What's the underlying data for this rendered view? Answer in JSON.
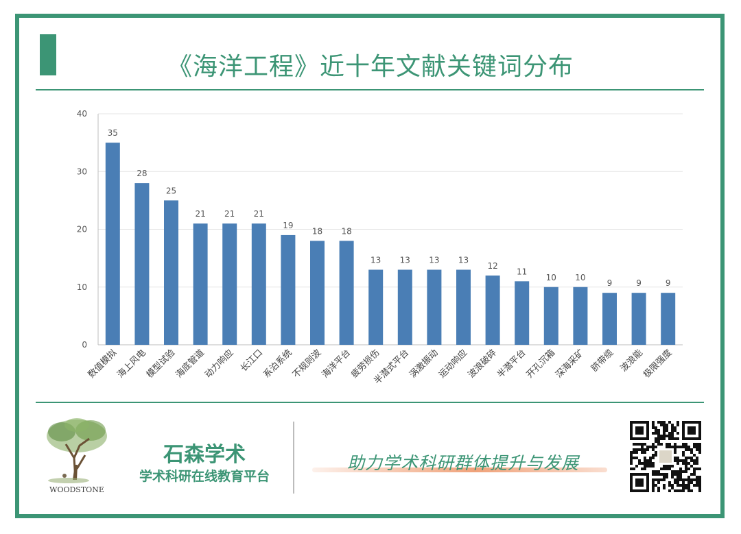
{
  "title": "《海洋工程》近十年文献关键词分布",
  "chart_data": {
    "type": "bar",
    "categories": [
      "数值模拟",
      "海上风电",
      "模型试验",
      "海底管道",
      "动力响应",
      "长江口",
      "系泊系统",
      "不规则波",
      "海洋平台",
      "疲劳损伤",
      "半潜式平台",
      "涡激振动",
      "运动响应",
      "波浪破碎",
      "半潜平台",
      "开孔沉箱",
      "深海采矿",
      "脐带缆",
      "波浪能",
      "极限强度"
    ],
    "values": [
      35,
      28,
      25,
      21,
      21,
      21,
      19,
      18,
      18,
      13,
      13,
      13,
      13,
      12,
      11,
      10,
      10,
      9,
      9,
      9
    ],
    "ylim": [
      0,
      40
    ],
    "yticks": [
      0,
      10,
      20,
      30,
      40
    ],
    "grid": true,
    "bar_color": "#4a7eb5"
  },
  "footer": {
    "logo_text": "WOODSTONE",
    "brand_name": "石森学术",
    "brand_subtitle": "学术科研在线教育平台",
    "slogan": "助力学术科研群体提升与发展"
  },
  "colors": {
    "accent": "#3c9575",
    "bar": "#4a7eb5",
    "slogan_underline": "#f0a27a"
  }
}
